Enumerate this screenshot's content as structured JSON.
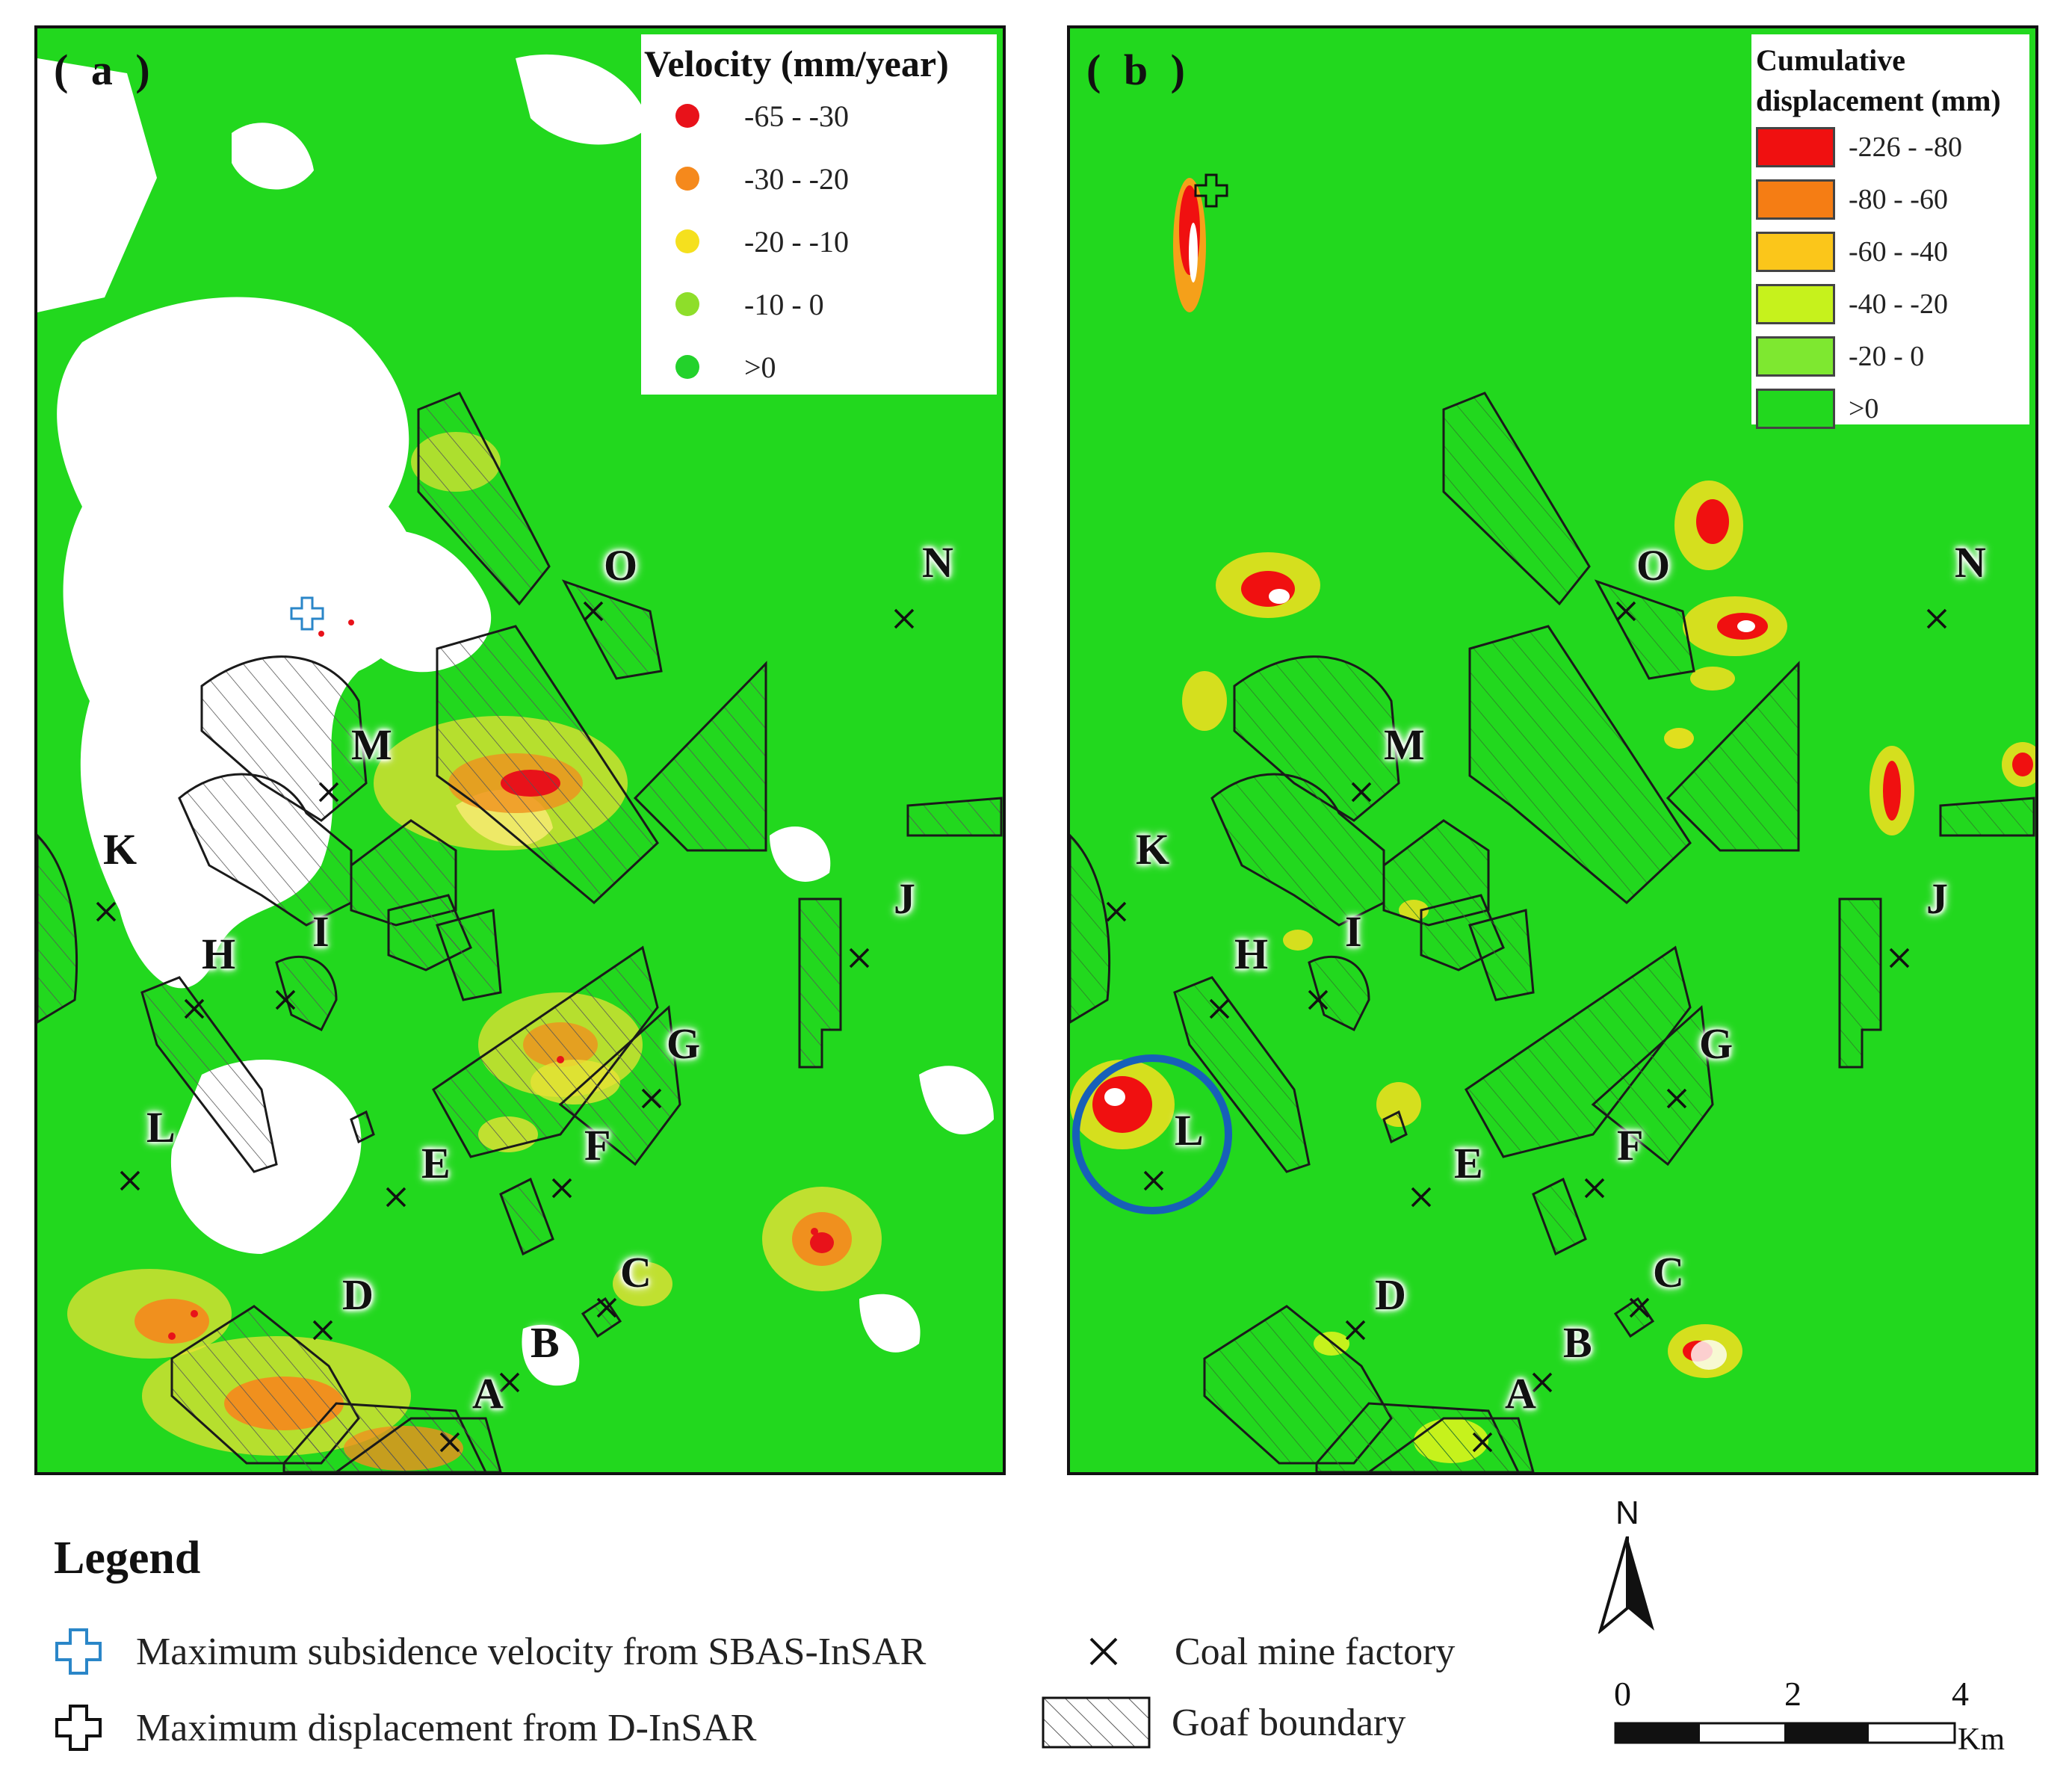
{
  "panel_a": {
    "label": "( a )",
    "legend": {
      "title": "Velocity (mm/year)",
      "classes": [
        {
          "label": "-65 - -30",
          "color": "#e8121a"
        },
        {
          "label": "-30 - -20",
          "color": "#f5891c"
        },
        {
          "label": "-20 - -10",
          "color": "#f5e01e"
        },
        {
          "label": "-10 - 0",
          "color": "#8ede2a"
        },
        {
          "label": ">0",
          "color": "#23d22b"
        }
      ]
    }
  },
  "panel_b": {
    "label": "( b )",
    "legend": {
      "title_line1": "Cumulative",
      "title_line2": "displacement (mm)",
      "classes": [
        {
          "label": "-226 - -80",
          "color": "#f01010"
        },
        {
          "label": "-80 - -60",
          "color": "#f57d14"
        },
        {
          "label": "-60 - -40",
          "color": "#fbc61a"
        },
        {
          "label": "-40 - -20",
          "color": "#c6f21c"
        },
        {
          "label": "-20 - 0",
          "color": "#7ee830"
        },
        {
          "label": ">0",
          "color": "#22d81e"
        }
      ]
    },
    "highlight_circle_color": "#1760b8"
  },
  "sites": [
    "A",
    "B",
    "C",
    "D",
    "E",
    "F",
    "G",
    "H",
    "I",
    "J",
    "K",
    "L",
    "M",
    "N",
    "O"
  ],
  "main_legend": {
    "title": "Legend",
    "items": {
      "sbas": "Maximum subsidence velocity from SBAS-InSAR",
      "dinsar": "Maximum displacement from D-InSAR",
      "factory": "Coal mine factory",
      "goaf": "Goaf boundary"
    },
    "sbas_icon_color": "#2a86c8"
  },
  "north_arrow": {
    "label": "N"
  },
  "scale_bar": {
    "ticks": [
      "0",
      "2",
      "4"
    ],
    "unit": "Km"
  }
}
